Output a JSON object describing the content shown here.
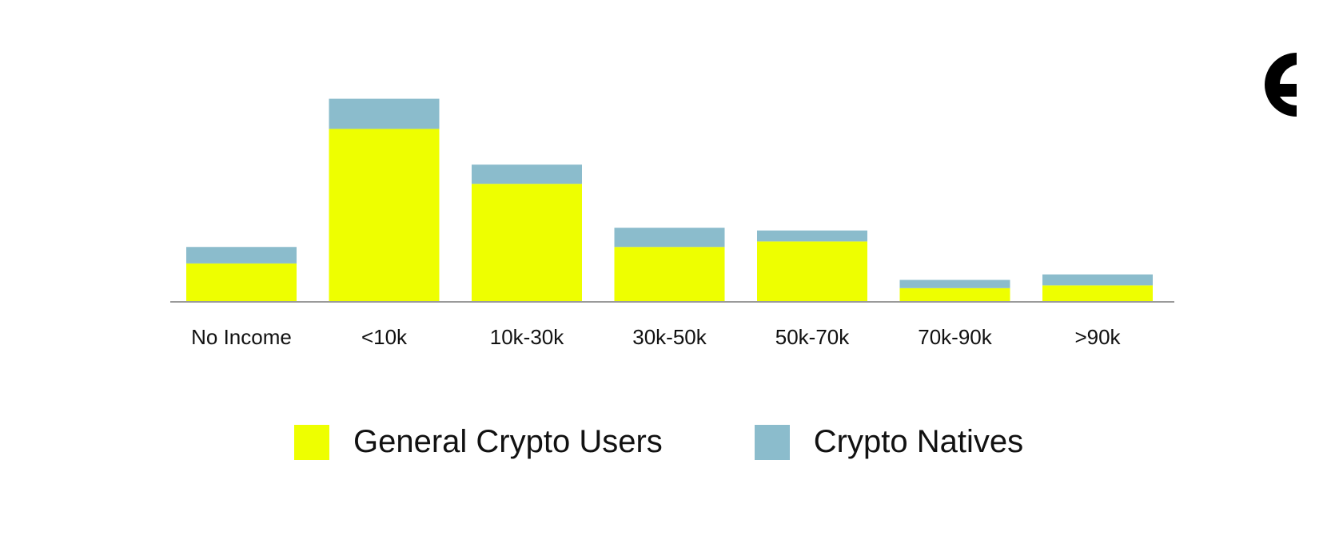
{
  "chart_data": {
    "type": "bar",
    "stacked": true,
    "categories": [
      "No Income",
      "<10k",
      "10k-30k",
      "30k-50k",
      "50k-70k",
      "70k-90k",
      ">90k"
    ],
    "series": [
      {
        "name": "General Crypto Users",
        "color": "#EEFF00",
        "values": [
          14,
          63,
          43,
          20,
          22,
          5,
          6
        ]
      },
      {
        "name": "Crypto Natives",
        "color": "#8BBCCC",
        "values": [
          6,
          11,
          7,
          7,
          4,
          3,
          4
        ]
      }
    ],
    "title": "",
    "xlabel": "",
    "ylabel": "",
    "ylim": [
      0,
      80
    ],
    "grid": false,
    "legend_position": "bottom"
  },
  "colors": {
    "axis": "#9A9A9A",
    "text": "#111111",
    "logo": "#000000"
  },
  "logo": {
    "icon": "brand-c-logo-icon"
  }
}
